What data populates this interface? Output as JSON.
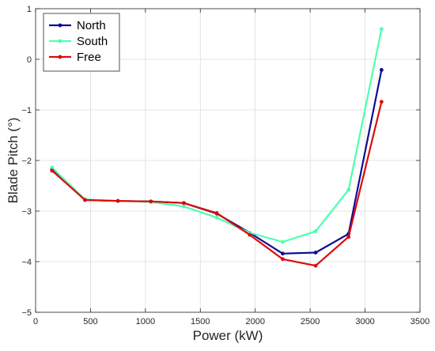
{
  "chart_data": {
    "type": "line",
    "title": "",
    "xlabel": "Power (kW)",
    "ylabel": "Blade Pitch (°)",
    "xlim": [
      0,
      3500
    ],
    "ylim": [
      -5,
      1
    ],
    "x_ticks": [
      0,
      500,
      1000,
      1500,
      2000,
      2500,
      3000,
      3500
    ],
    "y_ticks": [
      -5,
      -4,
      -3,
      -2,
      -1,
      0,
      1
    ],
    "x_tick_labels": [
      "0",
      "500",
      "1000",
      "1500",
      "2000",
      "2500",
      "3000",
      "3500"
    ],
    "y_tick_labels": [
      "−5",
      "−4",
      "−3",
      "−2",
      "−1",
      "0",
      "1"
    ],
    "grid": true,
    "legend_position": "top-left",
    "x": [
      150,
      450,
      750,
      1050,
      1350,
      1650,
      1950,
      2250,
      2550,
      2850,
      3150
    ],
    "series": [
      {
        "name": "North",
        "color": "#0d0d96",
        "values": [
          -2.17,
          -2.78,
          -2.8,
          -2.81,
          -2.84,
          -3.05,
          -3.43,
          -3.84,
          -3.82,
          -3.45,
          -0.21
        ]
      },
      {
        "name": "South",
        "color": "#4dffb0",
        "values": [
          -2.14,
          -2.77,
          -2.8,
          -2.82,
          -2.91,
          -3.13,
          -3.43,
          -3.61,
          -3.4,
          -2.58,
          0.6
        ]
      },
      {
        "name": "Free",
        "color": "#dd0a0a",
        "values": [
          -2.2,
          -2.78,
          -2.8,
          -2.81,
          -2.84,
          -3.04,
          -3.47,
          -3.95,
          -4.08,
          -3.51,
          -0.84
        ]
      }
    ]
  }
}
